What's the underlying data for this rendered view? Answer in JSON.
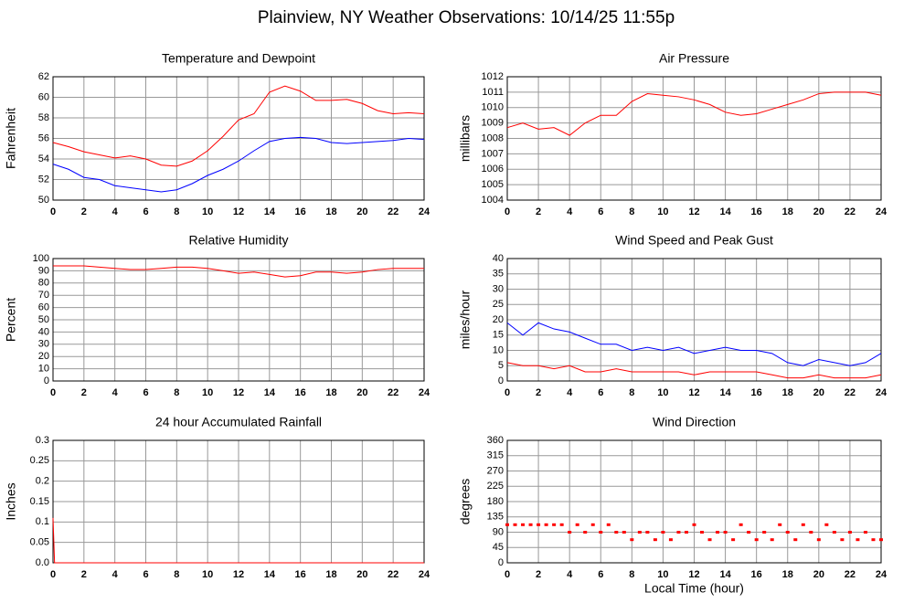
{
  "title": "Plainview, NY Weather Observations: 10/14/25 11:55p",
  "chart_data": [
    {
      "type": "line",
      "title": "Temperature and Dewpoint",
      "ylabel": "Fahrenheit",
      "x": [
        0,
        1,
        2,
        3,
        4,
        5,
        6,
        7,
        8,
        9,
        10,
        11,
        12,
        13,
        14,
        15,
        16,
        17,
        18,
        19,
        20,
        21,
        22,
        23,
        24
      ],
      "series": [
        {
          "color": "#ff0000",
          "values": [
            55.6,
            55.2,
            54.7,
            54.4,
            54.1,
            54.3,
            54.0,
            53.4,
            53.3,
            53.8,
            54.8,
            56.2,
            57.8,
            58.4,
            60.5,
            61.1,
            60.6,
            59.7,
            59.7,
            59.8,
            59.4,
            58.7,
            58.4,
            58.5,
            58.4
          ]
        },
        {
          "color": "#0000ff",
          "values": [
            53.5,
            53.0,
            52.2,
            52.0,
            51.4,
            51.2,
            51.0,
            50.8,
            51.0,
            51.6,
            52.4,
            53.0,
            53.8,
            54.8,
            55.7,
            56.0,
            56.1,
            56.0,
            55.6,
            55.5,
            55.6,
            55.7,
            55.8,
            56.0,
            55.9
          ]
        }
      ],
      "xlim": [
        0,
        24
      ],
      "xticks": [
        0,
        2,
        4,
        6,
        8,
        10,
        12,
        14,
        16,
        18,
        20,
        22,
        24
      ],
      "ylim": [
        50,
        62
      ],
      "yticks": [
        50,
        52,
        54,
        56,
        58,
        60,
        62
      ],
      "grid": true
    },
    {
      "type": "line",
      "title": "Air Pressure",
      "ylabel": "millibars",
      "x": [
        0,
        1,
        2,
        3,
        4,
        5,
        6,
        7,
        8,
        9,
        10,
        11,
        12,
        13,
        14,
        15,
        16,
        17,
        18,
        19,
        20,
        21,
        22,
        23,
        24
      ],
      "series": [
        {
          "color": "#ff0000",
          "values": [
            1008.7,
            1009.0,
            1008.6,
            1008.7,
            1008.2,
            1009.0,
            1009.5,
            1009.5,
            1010.4,
            1010.9,
            1010.8,
            1010.7,
            1010.5,
            1010.2,
            1009.7,
            1009.5,
            1009.6,
            1009.9,
            1010.2,
            1010.5,
            1010.9,
            1011.0,
            1011.0,
            1011.0,
            1010.8
          ]
        }
      ],
      "xlim": [
        0,
        24
      ],
      "xticks": [
        0,
        2,
        4,
        6,
        8,
        10,
        12,
        14,
        16,
        18,
        20,
        22,
        24
      ],
      "ylim": [
        1004,
        1012
      ],
      "yticks": [
        1004,
        1005,
        1006,
        1007,
        1008,
        1009,
        1010,
        1011,
        1012
      ],
      "grid": true
    },
    {
      "type": "line",
      "title": "Relative Humidity",
      "ylabel": "Percent",
      "x": [
        0,
        1,
        2,
        3,
        4,
        5,
        6,
        7,
        8,
        9,
        10,
        11,
        12,
        13,
        14,
        15,
        16,
        17,
        18,
        19,
        20,
        21,
        22,
        23,
        24
      ],
      "series": [
        {
          "color": "#ff0000",
          "values": [
            94,
            94,
            94,
            93,
            92,
            91,
            91,
            92,
            93,
            93,
            92,
            90,
            88,
            89,
            87,
            85,
            86,
            89,
            89,
            88,
            89,
            91,
            92,
            92,
            92
          ]
        }
      ],
      "xlim": [
        0,
        24
      ],
      "xticks": [
        0,
        2,
        4,
        6,
        8,
        10,
        12,
        14,
        16,
        18,
        20,
        22,
        24
      ],
      "ylim": [
        0,
        100
      ],
      "yticks": [
        0,
        10,
        20,
        30,
        40,
        50,
        60,
        70,
        80,
        90,
        100
      ],
      "grid": true
    },
    {
      "type": "line",
      "title": "Wind Speed and Peak Gust",
      "ylabel": "miles/hour",
      "x": [
        0,
        1,
        2,
        3,
        4,
        5,
        6,
        7,
        8,
        9,
        10,
        11,
        12,
        13,
        14,
        15,
        16,
        17,
        18,
        19,
        20,
        21,
        22,
        23,
        24
      ],
      "series": [
        {
          "color": "#0000ff",
          "values": [
            19,
            15,
            19,
            17,
            16,
            14,
            12,
            12,
            10,
            11,
            10,
            11,
            9,
            10,
            11,
            10,
            10,
            9,
            6,
            5,
            7,
            6,
            5,
            6,
            9
          ]
        },
        {
          "color": "#ff0000",
          "values": [
            6,
            5,
            5,
            4,
            5,
            3,
            3,
            4,
            3,
            3,
            3,
            3,
            2,
            3,
            3,
            3,
            3,
            2,
            1,
            1,
            2,
            1,
            1,
            1,
            2
          ]
        }
      ],
      "xlim": [
        0,
        24
      ],
      "xticks": [
        0,
        2,
        4,
        6,
        8,
        10,
        12,
        14,
        16,
        18,
        20,
        22,
        24
      ],
      "ylim": [
        0,
        40
      ],
      "yticks": [
        0,
        5,
        10,
        15,
        20,
        25,
        30,
        35,
        40
      ],
      "grid": true
    },
    {
      "type": "line",
      "title": "24 hour Accumulated Rainfall",
      "ylabel": "Inches",
      "x": [
        0,
        0.1,
        24
      ],
      "series": [
        {
          "color": "#ff0000",
          "values": [
            0.11,
            0,
            0
          ]
        }
      ],
      "xlim": [
        0,
        24
      ],
      "xticks": [
        0,
        2,
        4,
        6,
        8,
        10,
        12,
        14,
        16,
        18,
        20,
        22,
        24
      ],
      "ylim": [
        0,
        0.3
      ],
      "yticks": [
        {
          "value": 0,
          "label": "0.0"
        },
        0.05,
        0.1,
        0.15,
        0.2,
        0.25,
        0.3
      ],
      "grid": true
    },
    {
      "type": "scatter",
      "title": "Wind Direction",
      "ylabel": "degrees",
      "xlabel": "Local Time (hour)",
      "x": [
        0,
        0.5,
        1,
        1.5,
        2,
        2.5,
        3,
        3.5,
        4,
        4.5,
        5,
        5.5,
        6,
        6.5,
        7,
        7.5,
        8,
        8.5,
        9,
        9.5,
        10,
        10.5,
        11,
        11.5,
        12,
        12.5,
        13,
        13.5,
        14,
        14.5,
        15,
        15.5,
        16,
        16.5,
        17,
        17.5,
        18,
        18.5,
        19,
        19.5,
        20,
        20.5,
        21,
        21.5,
        22,
        22.5,
        23,
        23.5,
        24
      ],
      "color": "#ff0000",
      "values": [
        112,
        112,
        112,
        112,
        112,
        112,
        112,
        112,
        90,
        112,
        90,
        112,
        90,
        112,
        90,
        90,
        68,
        90,
        90,
        68,
        90,
        68,
        90,
        90,
        112,
        90,
        68,
        90,
        90,
        68,
        112,
        90,
        68,
        90,
        68,
        112,
        90,
        68,
        112,
        90,
        68,
        112,
        90,
        68,
        90,
        68,
        90,
        68,
        68
      ],
      "xlim": [
        0,
        24
      ],
      "xticks": [
        0,
        2,
        4,
        6,
        8,
        10,
        12,
        14,
        16,
        18,
        20,
        22,
        24
      ],
      "ylim": [
        0,
        360
      ],
      "yticks": [
        0,
        45,
        90,
        135,
        180,
        225,
        270,
        315,
        360
      ],
      "grid": true
    }
  ]
}
